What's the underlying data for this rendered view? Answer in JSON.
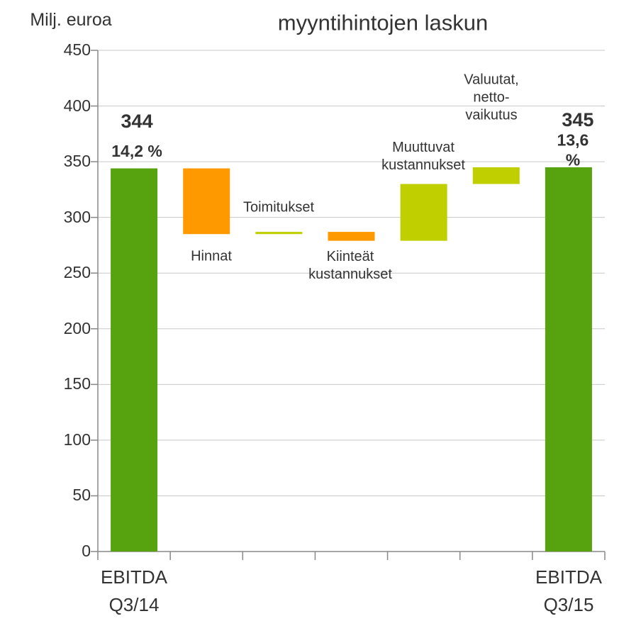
{
  "chart_data": {
    "type": "waterfall",
    "title": "myyntihintojen laskun",
    "y_label": "Milj. euroa",
    "categories": [
      "EBITDA\nQ3/14",
      "Hinnat",
      "Toimitukset",
      "Kiinteät\nkustannukset",
      "Muuttuvat\nkustannukset",
      "Valuutat,\nnetto-\nvaikutus",
      "EBITDA\nQ3/15"
    ],
    "values": [
      344,
      -59,
      2,
      -8,
      51,
      15,
      345
    ],
    "measure": [
      "absolute",
      "relative",
      "relative",
      "relative",
      "relative",
      "relative",
      "total"
    ],
    "value_labels": [
      "344",
      null,
      null,
      null,
      null,
      null,
      "345"
    ],
    "annotations": [
      "14,2 %",
      null,
      null,
      null,
      null,
      null,
      "13,6 %"
    ],
    "colors": {
      "total": "#56a30f",
      "increase": "#bfcf00",
      "decrease": "#ff9900"
    },
    "ylim": [
      0,
      450
    ],
    "yticks": [
      0,
      50,
      100,
      150,
      200,
      250,
      300,
      350,
      400,
      450
    ],
    "grid": true
  }
}
